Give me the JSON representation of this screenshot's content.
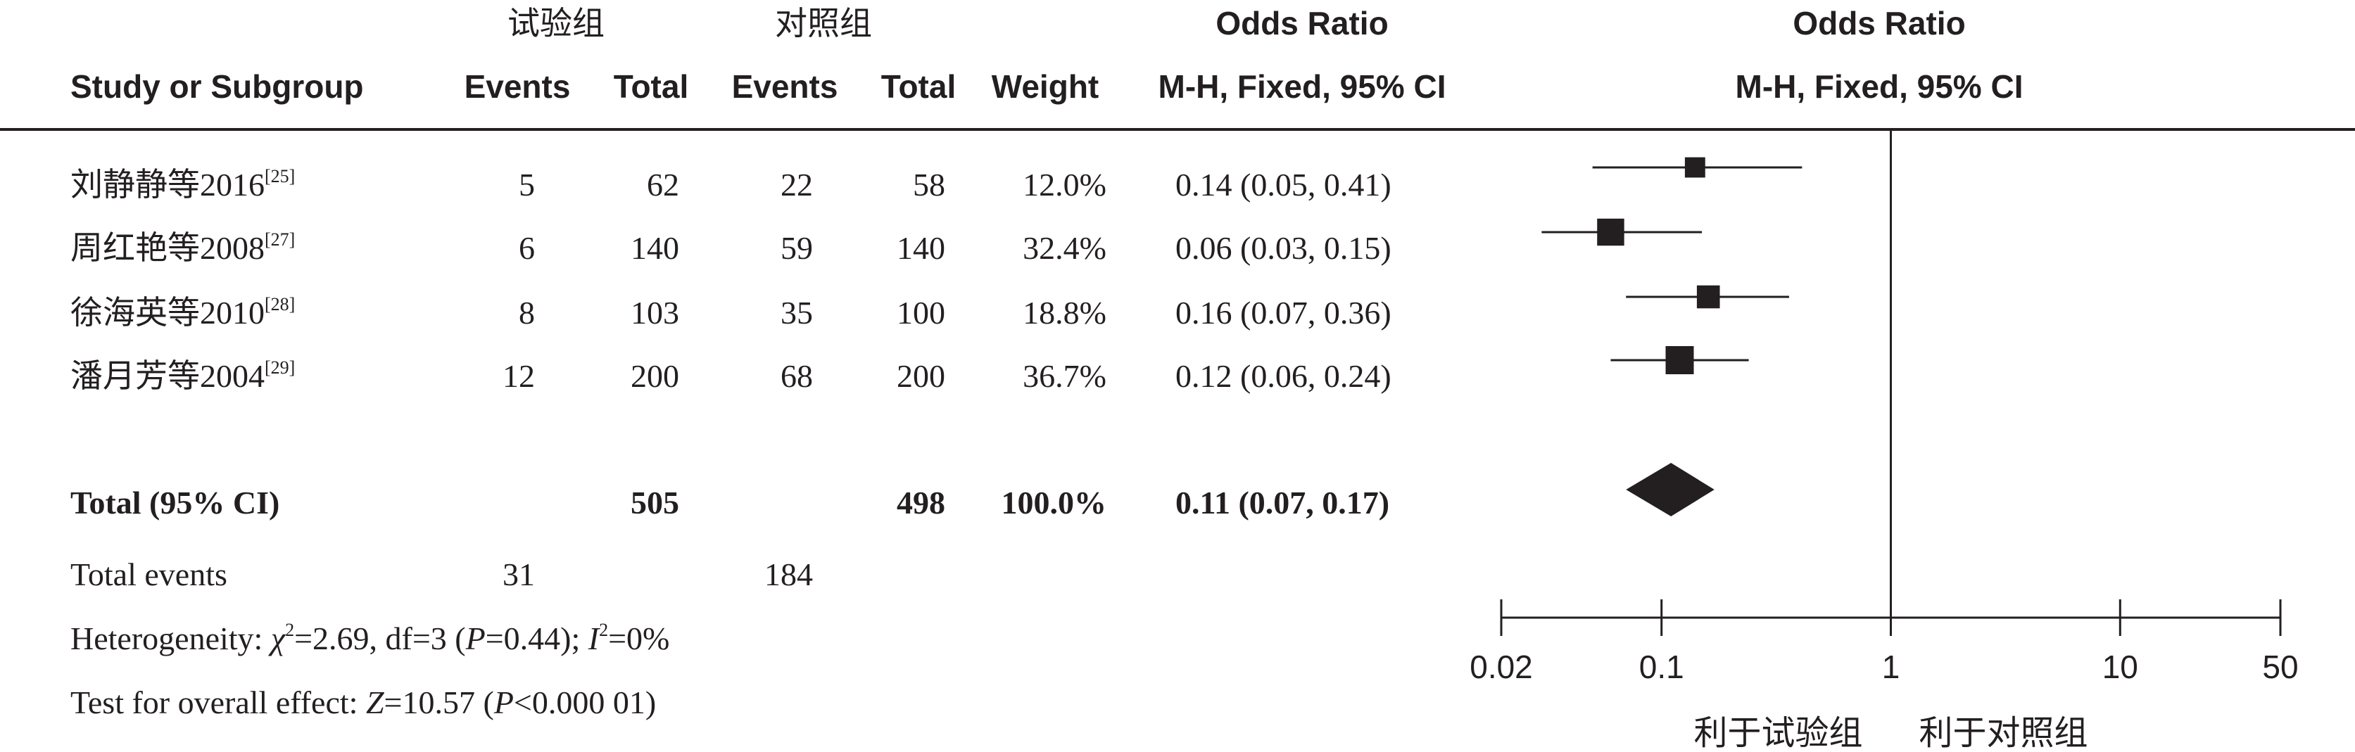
{
  "header": {
    "group_exp": "试验组",
    "group_ctrl": "对照组",
    "or_title_table": "Odds Ratio",
    "or_title_plot": "Odds Ratio",
    "study_col": "Study or Subgroup",
    "events_exp": "Events",
    "total_exp": "Total",
    "events_ctrl": "Events",
    "total_ctrl": "Total",
    "weight": "Weight",
    "method_table": "M-H, Fixed, 95% CI",
    "method_plot": "M-H, Fixed, 95% CI"
  },
  "rows": [
    {
      "study": "刘静静等2016",
      "ref": "[25]",
      "events_exp": "5",
      "total_exp": "62",
      "events_ctrl": "22",
      "total_ctrl": "58",
      "weight": "12.0%",
      "ci_text": "0.14 (0.05, 0.41)"
    },
    {
      "study": "周红艳等2008",
      "ref": "[27]",
      "events_exp": "6",
      "total_exp": "140",
      "events_ctrl": "59",
      "total_ctrl": "140",
      "weight": "32.4%",
      "ci_text": "0.06 (0.03, 0.15)"
    },
    {
      "study": "徐海英等2010",
      "ref": "[28]",
      "events_exp": "8",
      "total_exp": "103",
      "events_ctrl": "35",
      "total_ctrl": "100",
      "weight": "18.8%",
      "ci_text": "0.16 (0.07, 0.36)"
    },
    {
      "study": "潘月芳等2004",
      "ref": "[29]",
      "events_exp": "12",
      "total_exp": "200",
      "events_ctrl": "68",
      "total_ctrl": "200",
      "weight": "36.7%",
      "ci_text": "0.12 (0.06, 0.24)"
    }
  ],
  "total": {
    "label": "Total (95% CI)",
    "total_exp": "505",
    "total_ctrl": "498",
    "weight": "100.0%",
    "ci_text": "0.11 (0.07, 0.17)"
  },
  "total_events": {
    "label": "Total events",
    "events_exp": "31",
    "events_ctrl": "184"
  },
  "heterogeneity": {
    "prefix": "Heterogeneity: ",
    "chi": "χ",
    "chi_val": "=2.69, df=3 (",
    "p1": "P",
    "p1_val": "=0.44); ",
    "i": "I",
    "i_val": "=0%"
  },
  "overall": {
    "prefix": "Test for overall effect: ",
    "z": "Z",
    "z_val": "=10.57 (",
    "p": "P",
    "p_val": "<0.000 01)"
  },
  "chart_data": {
    "type": "forest",
    "scale": "log",
    "xlim": [
      0.02,
      50
    ],
    "ticks": [
      0.02,
      0.1,
      1,
      10,
      50
    ],
    "tick_labels": [
      "0.02",
      "0.1",
      "1",
      "10",
      "50"
    ],
    "null_line": 1,
    "favours_left": "利于试验组",
    "favours_right": "利于对照组",
    "studies": [
      {
        "name": "刘静静等2016",
        "or": 0.14,
        "lo": 0.05,
        "hi": 0.41,
        "weight": 12.0
      },
      {
        "name": "周红艳等2008",
        "or": 0.06,
        "lo": 0.03,
        "hi": 0.15,
        "weight": 32.4
      },
      {
        "name": "徐海英等2010",
        "or": 0.16,
        "lo": 0.07,
        "hi": 0.36,
        "weight": 18.8
      },
      {
        "name": "潘月芳等2004",
        "or": 0.12,
        "lo": 0.06,
        "hi": 0.24,
        "weight": 36.7
      }
    ],
    "pooled": {
      "or": 0.11,
      "lo": 0.07,
      "hi": 0.17
    },
    "colors": {
      "ink": "#231f20"
    }
  }
}
